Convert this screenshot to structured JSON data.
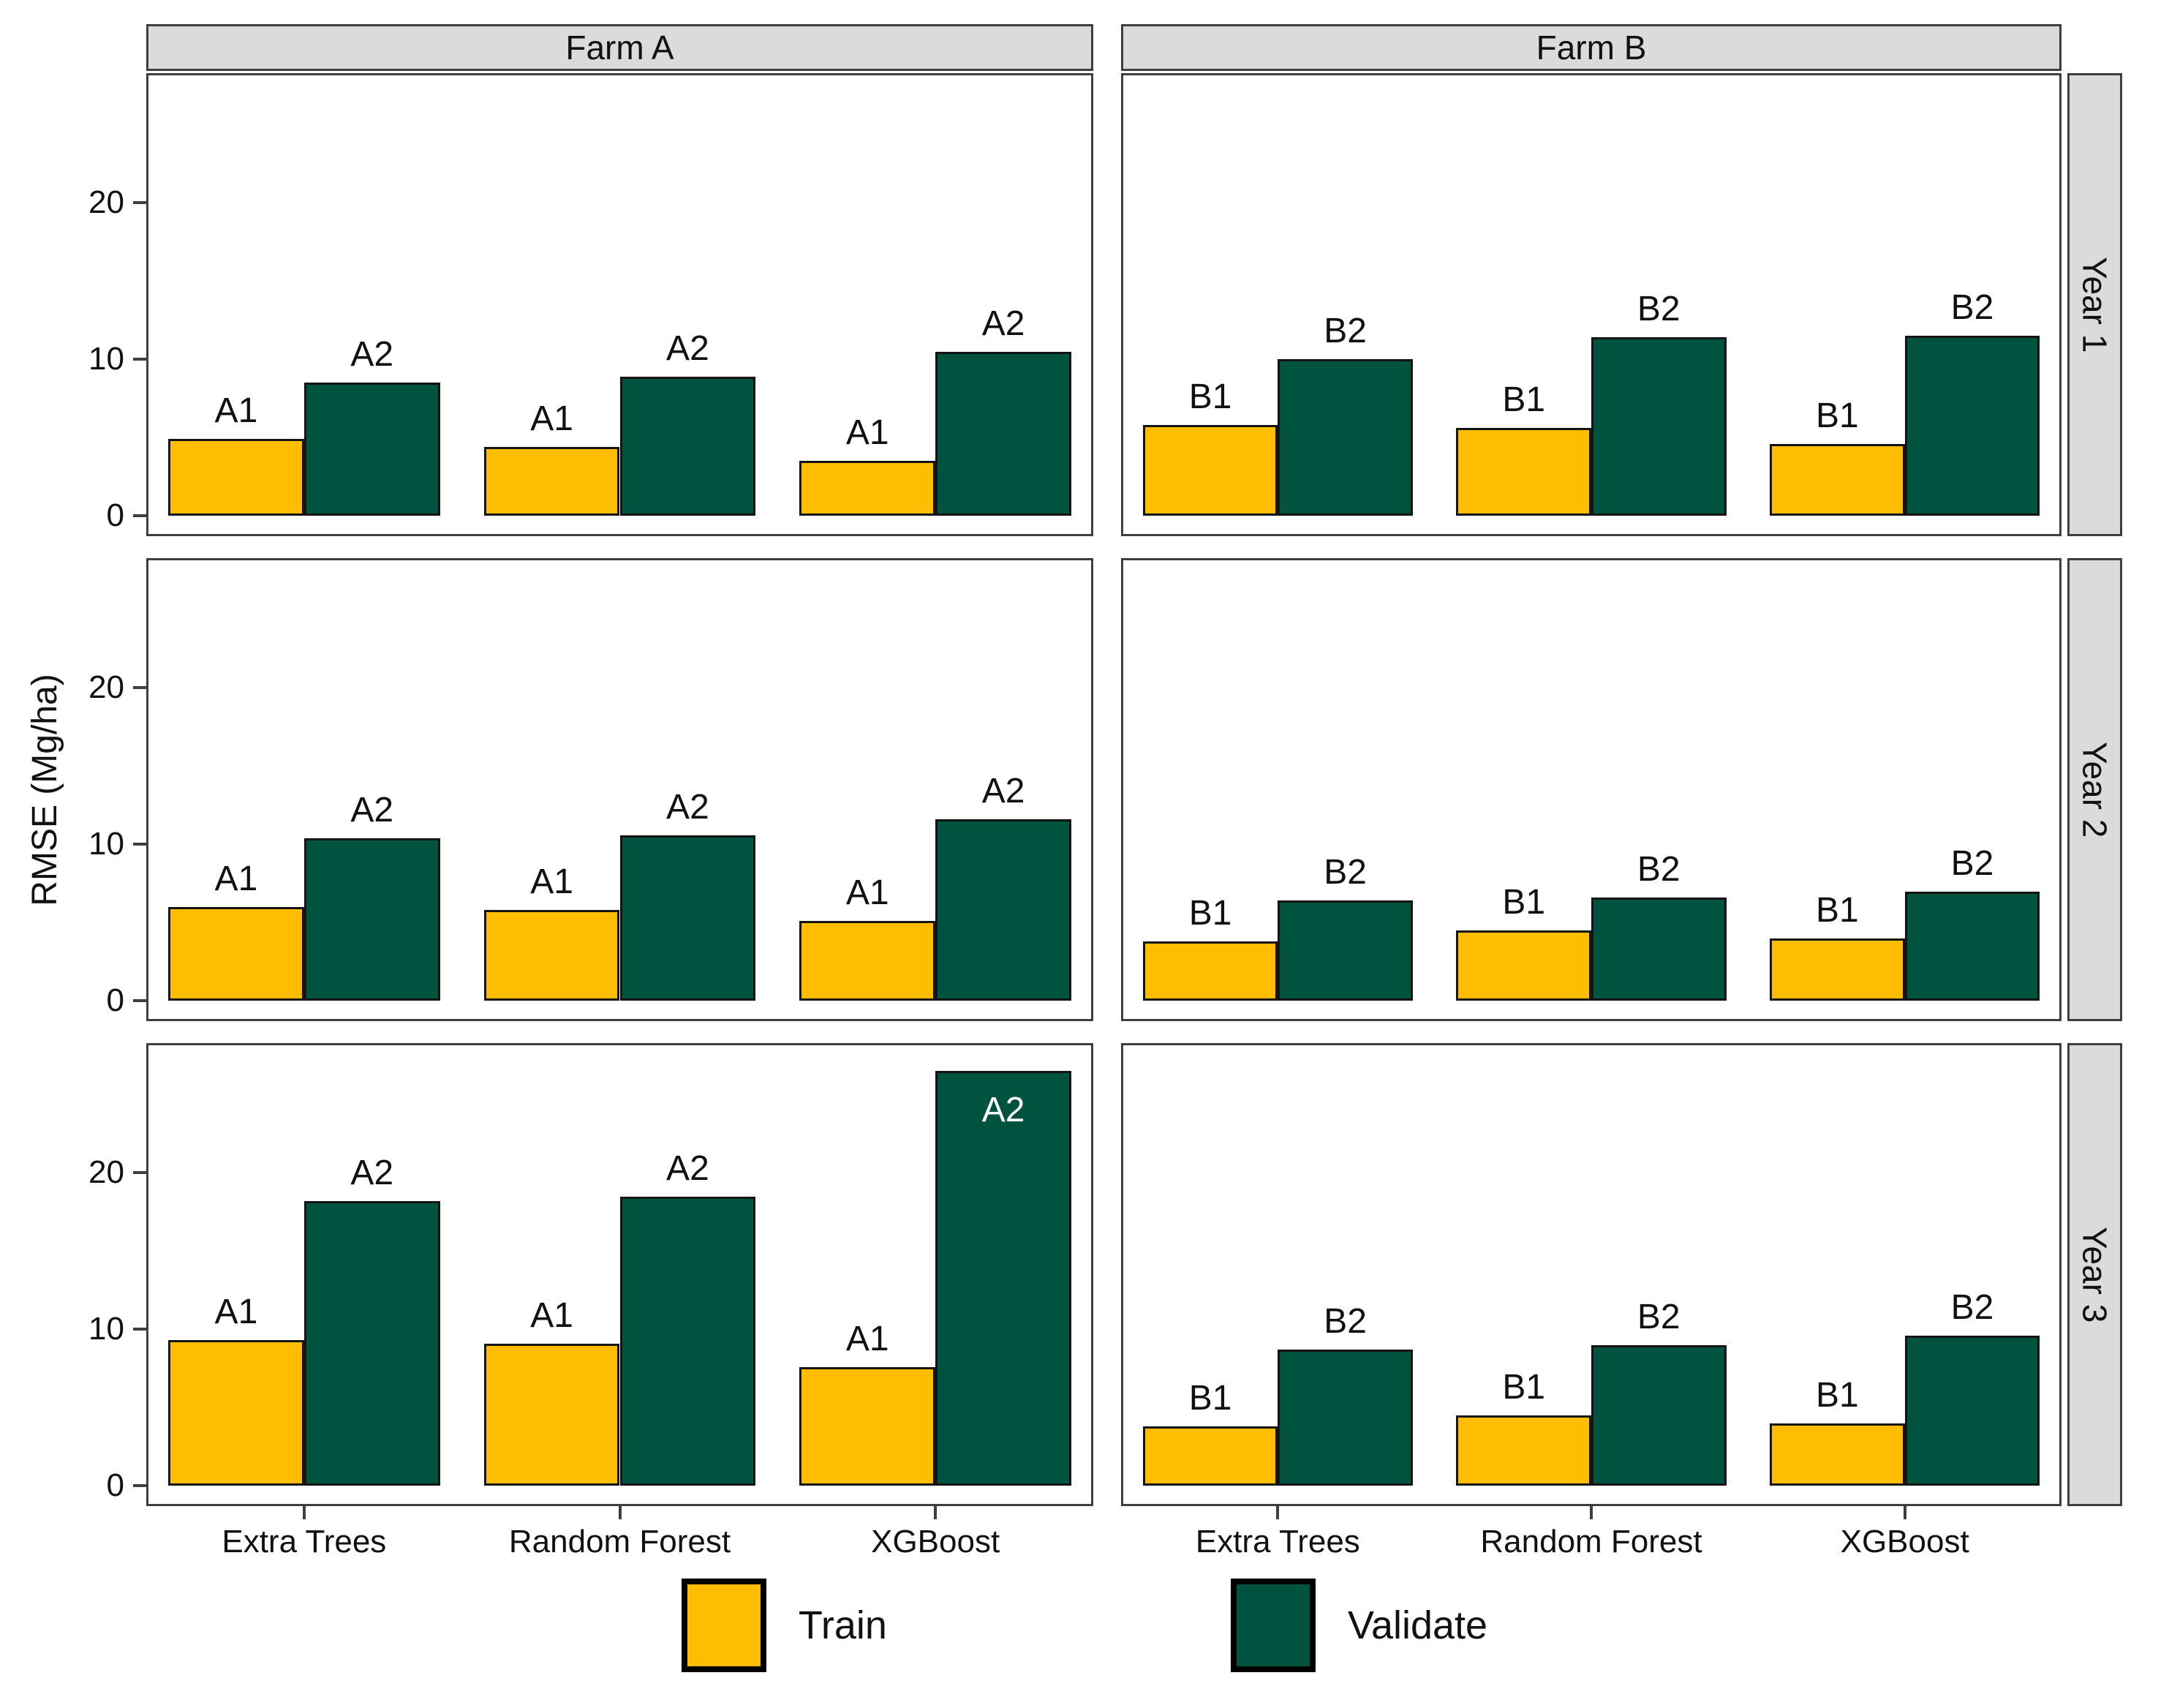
{
  "chart_data": {
    "type": "bar",
    "title": "",
    "ylabel": "RMSE (Mg/ha)",
    "ylim": [
      0,
      28.3
    ],
    "yticks": [
      0,
      10,
      20
    ],
    "grid": "off",
    "legend_position": "bottom",
    "categories": [
      "Extra Trees",
      "Random Forest",
      "XGBoost"
    ],
    "facet_cols": [
      "Farm A",
      "Farm B"
    ],
    "facet_rows": [
      "Year 1",
      "Year 2",
      "Year 3"
    ],
    "series_colors": {
      "Train": "#FFBD00",
      "Validate": "#00533F"
    },
    "legend": [
      {
        "label": "Train",
        "color": "#FFBD00"
      },
      {
        "label": "Validate",
        "color": "#00533F"
      }
    ],
    "panels": [
      {
        "row": "Year 1",
        "col": "Farm A",
        "series": [
          {
            "name": "Train",
            "bar_label": "A1",
            "values": [
              4.9,
              4.4,
              3.5
            ]
          },
          {
            "name": "Validate",
            "bar_label": "A2",
            "values": [
              8.5,
              8.9,
              10.5
            ]
          }
        ]
      },
      {
        "row": "Year 1",
        "col": "Farm B",
        "series": [
          {
            "name": "Train",
            "bar_label": "B1",
            "values": [
              5.8,
              5.6,
              4.6
            ]
          },
          {
            "name": "Validate",
            "bar_label": "B2",
            "values": [
              10.0,
              11.4,
              11.5
            ]
          }
        ]
      },
      {
        "row": "Year 2",
        "col": "Farm A",
        "series": [
          {
            "name": "Train",
            "bar_label": "A1",
            "values": [
              6.0,
              5.8,
              5.1
            ]
          },
          {
            "name": "Validate",
            "bar_label": "A2",
            "values": [
              10.4,
              10.6,
              11.6
            ]
          }
        ]
      },
      {
        "row": "Year 2",
        "col": "Farm B",
        "series": [
          {
            "name": "Train",
            "bar_label": "B1",
            "values": [
              3.8,
              4.5,
              4.0
            ]
          },
          {
            "name": "Validate",
            "bar_label": "B2",
            "values": [
              6.4,
              6.6,
              7.0
            ]
          }
        ]
      },
      {
        "row": "Year 3",
        "col": "Farm A",
        "series": [
          {
            "name": "Train",
            "bar_label": "A1",
            "values": [
              9.3,
              9.1,
              7.6
            ]
          },
          {
            "name": "Validate",
            "bar_label": "A2",
            "values": [
              18.2,
              18.5,
              26.5
            ]
          }
        ],
        "inside_label": {
          "series": 1,
          "category": 2
        }
      },
      {
        "row": "Year 3",
        "col": "Farm B",
        "series": [
          {
            "name": "Train",
            "bar_label": "B1",
            "values": [
              3.8,
              4.5,
              4.0
            ]
          },
          {
            "name": "Validate",
            "bar_label": "B2",
            "values": [
              8.7,
              9.0,
              9.6
            ]
          }
        ]
      }
    ]
  }
}
